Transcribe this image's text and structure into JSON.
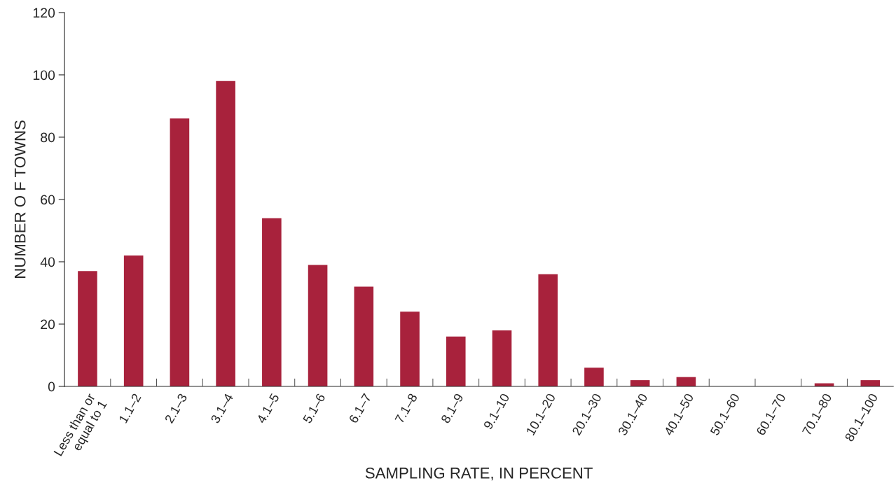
{
  "chart_data": {
    "type": "bar",
    "xlabel": "SAMPLING RATE, IN PERCENT",
    "ylabel": "NUMBER O F TOWNS",
    "categories": [
      "Less than or\nequal to 1",
      "1.1–2",
      "2.1–3",
      "3.1–4",
      "4.1–5",
      "5.1–6",
      "6.1–7",
      "7.1–8",
      "8.1–9",
      "9.1–10",
      "10.1–20",
      "20.1–30",
      "30.1–40",
      "40.1–50",
      "50.1–60",
      "60.1–70",
      "70.1–80",
      "80.1–100"
    ],
    "values": [
      37,
      42,
      86,
      98,
      54,
      39,
      32,
      24,
      16,
      18,
      36,
      6,
      2,
      3,
      0,
      0,
      1,
      2
    ],
    "color": "#a8223c",
    "ylim": [
      0,
      120
    ],
    "yticks": [
      0,
      20,
      40,
      60,
      80,
      100,
      120
    ],
    "grid": false,
    "legend": false
  }
}
